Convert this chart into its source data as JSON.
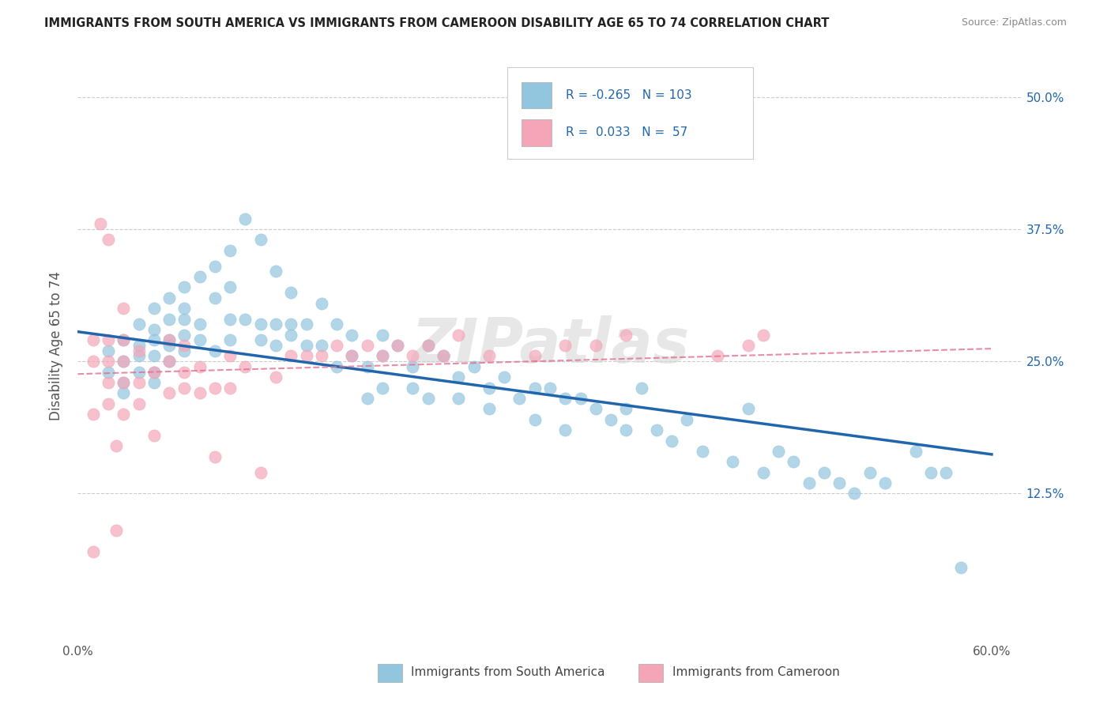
{
  "title": "IMMIGRANTS FROM SOUTH AMERICA VS IMMIGRANTS FROM CAMEROON DISABILITY AGE 65 TO 74 CORRELATION CHART",
  "source": "Source: ZipAtlas.com",
  "ylabel": "Disability Age 65 to 74",
  "ytick_labels": [
    "12.5%",
    "25.0%",
    "37.5%",
    "50.0%"
  ],
  "legend_entry1": {
    "R": "-0.265",
    "N": "103",
    "label": "Immigrants from South America"
  },
  "legend_entry2": {
    "R": "0.033",
    "N": "57",
    "label": "Immigrants from Cameroon"
  },
  "color_blue": "#92c5de",
  "color_pink": "#f4a6b8",
  "color_blue_line": "#2166ac",
  "color_pink_line": "#e07090",
  "watermark": "ZIPatlas",
  "xlim": [
    0.0,
    0.62
  ],
  "ylim": [
    -0.015,
    0.545
  ],
  "blue_scatter_x": [
    0.02,
    0.02,
    0.03,
    0.03,
    0.03,
    0.03,
    0.04,
    0.04,
    0.04,
    0.04,
    0.05,
    0.05,
    0.05,
    0.05,
    0.05,
    0.05,
    0.06,
    0.06,
    0.06,
    0.06,
    0.06,
    0.07,
    0.07,
    0.07,
    0.07,
    0.07,
    0.08,
    0.08,
    0.08,
    0.09,
    0.09,
    0.09,
    0.1,
    0.1,
    0.1,
    0.1,
    0.11,
    0.11,
    0.12,
    0.12,
    0.12,
    0.13,
    0.13,
    0.13,
    0.14,
    0.14,
    0.14,
    0.15,
    0.15,
    0.16,
    0.16,
    0.17,
    0.17,
    0.18,
    0.18,
    0.19,
    0.19,
    0.2,
    0.2,
    0.2,
    0.21,
    0.22,
    0.22,
    0.23,
    0.23,
    0.24,
    0.25,
    0.25,
    0.26,
    0.27,
    0.27,
    0.28,
    0.29,
    0.3,
    0.3,
    0.31,
    0.32,
    0.32,
    0.33,
    0.34,
    0.35,
    0.36,
    0.36,
    0.37,
    0.38,
    0.39,
    0.4,
    0.41,
    0.43,
    0.44,
    0.45,
    0.46,
    0.47,
    0.48,
    0.49,
    0.5,
    0.51,
    0.52,
    0.53,
    0.55,
    0.56,
    0.57,
    0.58
  ],
  "blue_scatter_y": [
    0.26,
    0.24,
    0.27,
    0.25,
    0.23,
    0.22,
    0.285,
    0.265,
    0.255,
    0.24,
    0.3,
    0.28,
    0.27,
    0.255,
    0.24,
    0.23,
    0.31,
    0.29,
    0.27,
    0.265,
    0.25,
    0.32,
    0.3,
    0.29,
    0.275,
    0.26,
    0.33,
    0.285,
    0.27,
    0.34,
    0.31,
    0.26,
    0.355,
    0.32,
    0.29,
    0.27,
    0.385,
    0.29,
    0.365,
    0.285,
    0.27,
    0.335,
    0.285,
    0.265,
    0.315,
    0.285,
    0.275,
    0.285,
    0.265,
    0.305,
    0.265,
    0.285,
    0.245,
    0.275,
    0.255,
    0.245,
    0.215,
    0.275,
    0.255,
    0.225,
    0.265,
    0.245,
    0.225,
    0.265,
    0.215,
    0.255,
    0.235,
    0.215,
    0.245,
    0.225,
    0.205,
    0.235,
    0.215,
    0.225,
    0.195,
    0.225,
    0.215,
    0.185,
    0.215,
    0.205,
    0.195,
    0.205,
    0.185,
    0.225,
    0.185,
    0.175,
    0.195,
    0.165,
    0.155,
    0.205,
    0.145,
    0.165,
    0.155,
    0.135,
    0.145,
    0.135,
    0.125,
    0.145,
    0.135,
    0.165,
    0.145,
    0.145,
    0.055
  ],
  "pink_scatter_x": [
    0.01,
    0.01,
    0.01,
    0.01,
    0.015,
    0.02,
    0.02,
    0.02,
    0.02,
    0.02,
    0.025,
    0.025,
    0.03,
    0.03,
    0.03,
    0.03,
    0.03,
    0.04,
    0.04,
    0.04,
    0.05,
    0.05,
    0.06,
    0.06,
    0.06,
    0.07,
    0.07,
    0.07,
    0.08,
    0.08,
    0.09,
    0.09,
    0.1,
    0.1,
    0.11,
    0.12,
    0.13,
    0.14,
    0.15,
    0.16,
    0.17,
    0.18,
    0.19,
    0.2,
    0.21,
    0.22,
    0.23,
    0.24,
    0.25,
    0.27,
    0.3,
    0.32,
    0.34,
    0.36,
    0.42,
    0.44,
    0.45
  ],
  "pink_scatter_y": [
    0.27,
    0.25,
    0.2,
    0.07,
    0.38,
    0.365,
    0.27,
    0.25,
    0.23,
    0.21,
    0.17,
    0.09,
    0.3,
    0.27,
    0.25,
    0.23,
    0.2,
    0.26,
    0.23,
    0.21,
    0.24,
    0.18,
    0.27,
    0.25,
    0.22,
    0.265,
    0.24,
    0.225,
    0.245,
    0.22,
    0.225,
    0.16,
    0.255,
    0.225,
    0.245,
    0.145,
    0.235,
    0.255,
    0.255,
    0.255,
    0.265,
    0.255,
    0.265,
    0.255,
    0.265,
    0.255,
    0.265,
    0.255,
    0.275,
    0.255,
    0.255,
    0.265,
    0.265,
    0.275,
    0.255,
    0.265,
    0.275
  ],
  "blue_line_x": [
    0.0,
    0.6
  ],
  "blue_line_y_start": 0.278,
  "blue_line_y_end": 0.162,
  "pink_line_x": [
    0.0,
    0.6
  ],
  "pink_line_y_start": 0.238,
  "pink_line_y_end": 0.262
}
